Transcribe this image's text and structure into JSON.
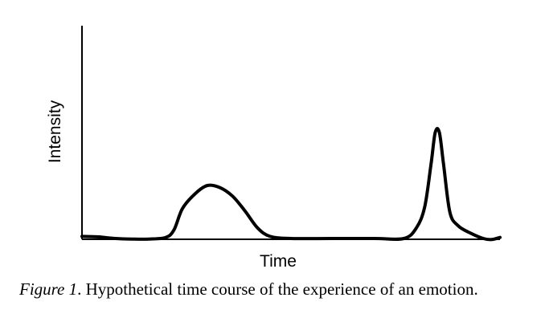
{
  "chart_data": {
    "type": "line",
    "xlabel": "Time",
    "ylabel": "Intensity",
    "x_ticks": false,
    "y_ticks": false,
    "grid": false,
    "legend": "none",
    "series": [
      {
        "color": "#000000",
        "points": [
          [
            0,
            0.02
          ],
          [
            4,
            0.015
          ],
          [
            8,
            0
          ],
          [
            12,
            -0.005
          ],
          [
            16,
            -0.005
          ],
          [
            20,
            0.01
          ],
          [
            22,
            0.08
          ],
          [
            24,
            0.28
          ],
          [
            27,
            0.42
          ],
          [
            30,
            0.5
          ],
          [
            33,
            0.48
          ],
          [
            36,
            0.4
          ],
          [
            39,
            0.26
          ],
          [
            42,
            0.1
          ],
          [
            45,
            0.02
          ],
          [
            50,
            0
          ],
          [
            60,
            0
          ],
          [
            70,
            0
          ],
          [
            77,
            0
          ],
          [
            80,
            0.1
          ],
          [
            82,
            0.3
          ],
          [
            83.5,
            0.7
          ],
          [
            84.5,
            1.0
          ],
          [
            85.5,
            1.0
          ],
          [
            86.5,
            0.7
          ],
          [
            88,
            0.25
          ],
          [
            90,
            0.12
          ],
          [
            93,
            0.05
          ],
          [
            96,
            0
          ],
          [
            98,
            -0.01
          ],
          [
            100,
            0.01
          ]
        ]
      }
    ]
  },
  "caption": {
    "lead": "Figure 1",
    "text": ". Hypothetical time course of the experience of an emotion."
  }
}
